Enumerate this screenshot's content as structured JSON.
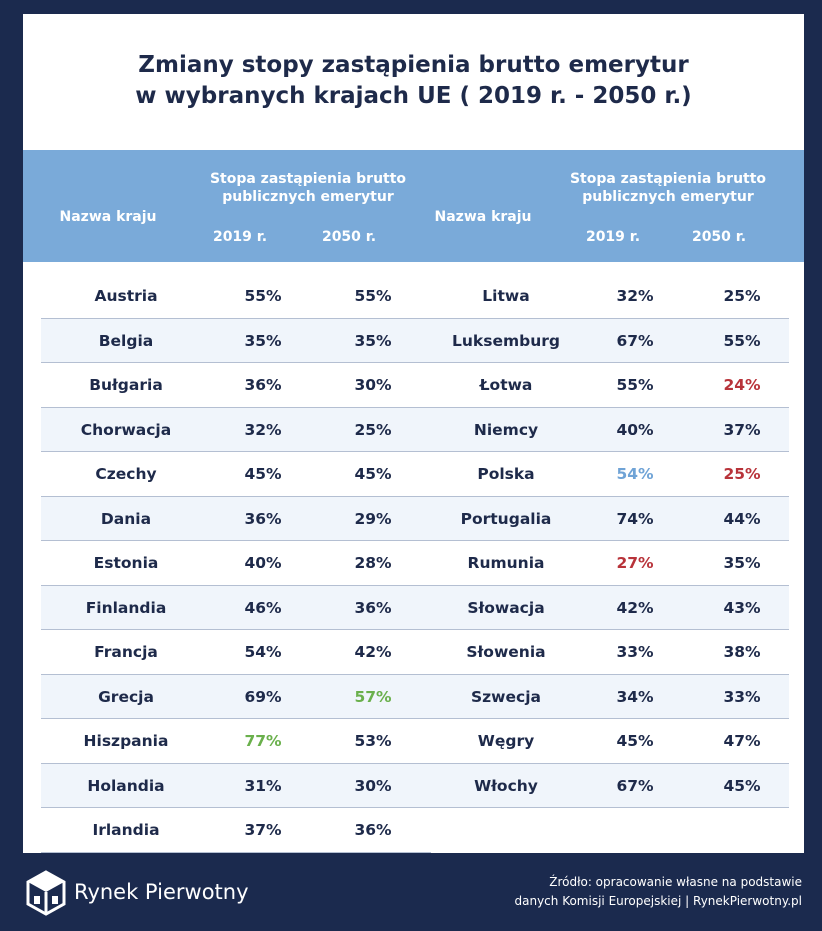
{
  "title": {
    "line1": "Zmiany stopy zastąpienia brutto emerytur",
    "line2": "w wybranych krajach UE ( 2019 r. - 2050 r.)"
  },
  "header": {
    "country": "Nazwa kraju",
    "group_line1": "Stopa zastąpienia brutto",
    "group_line2": "publicznych emerytur",
    "year1": "2019 r.",
    "year2": "2050 r."
  },
  "colors": {
    "background": "#1b2a4e",
    "header": "#7aaad9",
    "text": "#1e2a4a",
    "highlight_blue": "#6fa3d6",
    "highlight_red": "#b8333a",
    "highlight_green": "#6ab04c"
  },
  "chart_data": {
    "type": "table",
    "columns": [
      "Nazwa kraju",
      "2019 r.",
      "2050 r."
    ],
    "left_rows": [
      {
        "country": "Austria",
        "y2019": "55%",
        "y2050": "55%"
      },
      {
        "country": "Belgia",
        "y2019": "35%",
        "y2050": "35%"
      },
      {
        "country": "Bułgaria",
        "y2019": "36%",
        "y2050": "30%"
      },
      {
        "country": "Chorwacja",
        "y2019": "32%",
        "y2050": "25%"
      },
      {
        "country": "Czechy",
        "y2019": "45%",
        "y2050": "45%"
      },
      {
        "country": "Dania",
        "y2019": "36%",
        "y2050": "29%"
      },
      {
        "country": "Estonia",
        "y2019": "40%",
        "y2050": "28%"
      },
      {
        "country": "Finlandia",
        "y2019": "46%",
        "y2050": "36%"
      },
      {
        "country": "Francja",
        "y2019": "54%",
        "y2050": "42%"
      },
      {
        "country": "Grecja",
        "y2019": "69%",
        "y2050": "57%",
        "c2050": "green"
      },
      {
        "country": "Hiszpania",
        "y2019": "77%",
        "y2050": "53%",
        "c2019": "green"
      },
      {
        "country": "Holandia",
        "y2019": "31%",
        "y2050": "30%"
      },
      {
        "country": "Irlandia",
        "y2019": "37%",
        "y2050": "36%"
      }
    ],
    "right_rows": [
      {
        "country": "Litwa",
        "y2019": "32%",
        "y2050": "25%"
      },
      {
        "country": "Luksemburg",
        "y2019": "67%",
        "y2050": "55%"
      },
      {
        "country": "Łotwa",
        "y2019": "55%",
        "y2050": "24%",
        "c2050": "red"
      },
      {
        "country": "Niemcy",
        "y2019": "40%",
        "y2050": "37%"
      },
      {
        "country": "Polska",
        "y2019": "54%",
        "y2050": "25%",
        "c2019": "blue",
        "c2050": "red"
      },
      {
        "country": "Portugalia",
        "y2019": "74%",
        "y2050": "44%"
      },
      {
        "country": "Rumunia",
        "y2019": "27%",
        "y2050": "35%",
        "c2019": "red"
      },
      {
        "country": "Słowacja",
        "y2019": "42%",
        "y2050": "43%"
      },
      {
        "country": "Słowenia",
        "y2019": "33%",
        "y2050": "38%"
      },
      {
        "country": "Szwecja",
        "y2019": "34%",
        "y2050": "33%"
      },
      {
        "country": "Węgry",
        "y2019": "45%",
        "y2050": "47%"
      },
      {
        "country": "Włochy",
        "y2019": "67%",
        "y2050": "45%"
      }
    ]
  },
  "footer": {
    "brand": "Rynek Pierwotny",
    "source_line1": "Źródło: opracowanie własne na podstawie",
    "source_line2": "danych Komisji Europejskiej | RynekPierwotny.pl"
  }
}
